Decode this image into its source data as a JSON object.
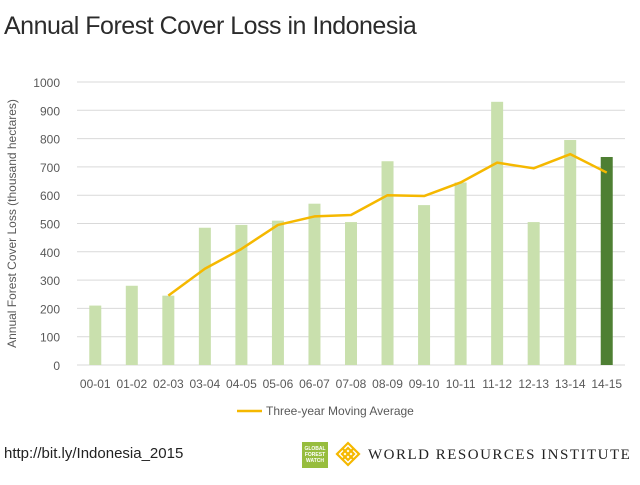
{
  "title": "Annual Forest Cover Loss in Indonesia",
  "footer": {
    "url": "http://bit.ly/Indonesia_2015",
    "gfw_badge": "GLOBAL FOREST WATCH",
    "org_name": "WORLD RESOURCES INSTITUTE"
  },
  "colors": {
    "bar": "#c9e0ad",
    "bar_highlight": "#4e7f33",
    "line": "#f5b800",
    "grid": "#d9d9d9",
    "axis_text": "#595959"
  },
  "chart_data": {
    "type": "bar",
    "title": "Annual Forest Cover Loss in Indonesia",
    "xlabel": "",
    "ylabel": "Annual Forest Cover Loss (thousand hectares)",
    "ylim": [
      0,
      1000
    ],
    "yticks": [
      0,
      100,
      200,
      300,
      400,
      500,
      600,
      700,
      800,
      900,
      1000
    ],
    "grid": true,
    "categories": [
      "00-01",
      "01-02",
      "02-03",
      "03-04",
      "04-05",
      "05-06",
      "06-07",
      "07-08",
      "08-09",
      "09-10",
      "10-11",
      "11-12",
      "12-13",
      "13-14",
      "14-15"
    ],
    "values": [
      210,
      280,
      245,
      485,
      495,
      510,
      570,
      505,
      720,
      565,
      645,
      930,
      505,
      795,
      735
    ],
    "highlight_index": 14,
    "series": [
      {
        "name": "Three-year Moving Average",
        "type": "line",
        "values": [
          null,
          null,
          245,
          340,
          410,
          495,
          525,
          530,
          600,
          597,
          645,
          715,
          695,
          745,
          680
        ]
      }
    ],
    "legend": "bottom"
  }
}
